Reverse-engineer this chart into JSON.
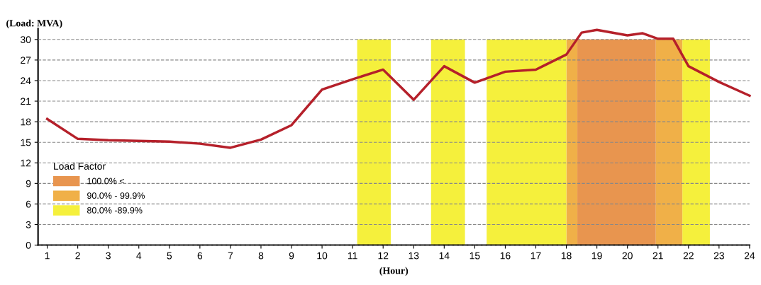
{
  "chart_data": {
    "type": "line",
    "xlabel": "(Hour)",
    "ylabel": "(Load: MVA)",
    "legend_title": "Load Factor",
    "x": [
      1,
      2,
      3,
      4,
      5,
      6,
      7,
      8,
      9,
      10,
      11,
      12,
      13,
      14,
      15,
      16,
      17,
      18,
      18.5,
      19,
      20,
      20.5,
      21,
      21.5,
      22,
      23,
      24
    ],
    "series": [
      {
        "type": "area",
        "name": "100.0% <",
        "color": "#e8954f",
        "x": [
          18.36,
          20.93
        ],
        "values": [
          30,
          30
        ]
      },
      {
        "type": "area",
        "name": "90.0% - 99.9%",
        "color": "#f0b048",
        "x": [
          18.0,
          18.36,
          19.6,
          20.93,
          21.8
        ],
        "values": [
          30,
          30,
          null,
          30,
          30
        ]
      },
      {
        "type": "area",
        "name": "80.0% -89.9%",
        "color": "#f5f03c",
        "x": [
          11.15,
          12.25,
          12.9,
          13.57,
          14.68,
          15.0,
          15.39,
          18.0,
          19.9,
          21.8,
          22.7
        ],
        "values": [
          30,
          30,
          null,
          30,
          30,
          null,
          30,
          30,
          null,
          30,
          30
        ]
      },
      {
        "color": "#b5202a",
        "values": [
          18.4,
          15.5,
          15.3,
          15.2,
          15.1,
          14.8,
          14.2,
          15.4,
          17.5,
          22.7,
          24.2,
          25.6,
          21.2,
          26.1,
          23.7,
          25.3,
          25.6,
          27.8,
          31.0,
          31.4,
          30.6,
          30.9,
          30.1,
          30.1,
          26.1,
          23.8,
          21.8
        ]
      }
    ],
    "xlim": [
      0.7,
      24
    ],
    "xticks": [
      1,
      2,
      3,
      4,
      5,
      6,
      7,
      8,
      9,
      10,
      11,
      12,
      13,
      14,
      15,
      16,
      17,
      18,
      19,
      20,
      21,
      22,
      23,
      24
    ],
    "ylim": [
      0,
      31.6
    ],
    "yticks": [
      0,
      3,
      6,
      9,
      12,
      15,
      18,
      21,
      24,
      27,
      30
    ],
    "grid": "y",
    "legend": "bottom left",
    "marker": "none",
    "line_style": "solid"
  }
}
